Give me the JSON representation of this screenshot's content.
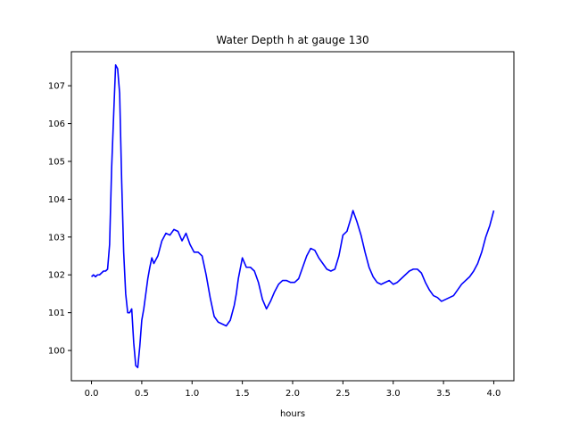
{
  "chart_data": {
    "type": "line",
    "title": "Water Depth h at gauge 130",
    "xlabel": "hours",
    "ylabel": "",
    "xlim": [
      -0.2,
      4.2
    ],
    "ylim": [
      99.2,
      107.9
    ],
    "xticks": [
      0.0,
      0.5,
      1.0,
      1.5,
      2.0,
      2.5,
      3.0,
      3.5,
      4.0
    ],
    "xtick_labels": [
      "0.0",
      "0.5",
      "1.0",
      "1.5",
      "2.0",
      "2.5",
      "3.0",
      "3.5",
      "4.0"
    ],
    "yticks": [
      100,
      101,
      102,
      103,
      104,
      105,
      106,
      107
    ],
    "ytick_labels": [
      "100",
      "101",
      "102",
      "103",
      "104",
      "105",
      "106",
      "107"
    ],
    "grid": false,
    "series": [
      {
        "color": "#0000ff",
        "x": [
          0.0,
          0.02,
          0.04,
          0.06,
          0.08,
          0.1,
          0.12,
          0.14,
          0.16,
          0.18,
          0.2,
          0.22,
          0.24,
          0.26,
          0.28,
          0.3,
          0.32,
          0.34,
          0.36,
          0.38,
          0.4,
          0.42,
          0.44,
          0.46,
          0.48,
          0.5,
          0.52,
          0.54,
          0.56,
          0.58,
          0.6,
          0.62,
          0.64,
          0.66,
          0.7,
          0.74,
          0.78,
          0.82,
          0.86,
          0.9,
          0.94,
          0.98,
          1.02,
          1.06,
          1.1,
          1.14,
          1.18,
          1.22,
          1.26,
          1.3,
          1.34,
          1.38,
          1.42,
          1.44,
          1.46,
          1.5,
          1.54,
          1.58,
          1.62,
          1.66,
          1.7,
          1.74,
          1.78,
          1.82,
          1.86,
          1.9,
          1.94,
          1.98,
          2.02,
          2.06,
          2.1,
          2.14,
          2.18,
          2.22,
          2.26,
          2.3,
          2.34,
          2.38,
          2.42,
          2.46,
          2.5,
          2.54,
          2.58,
          2.6,
          2.64,
          2.68,
          2.72,
          2.76,
          2.8,
          2.84,
          2.88,
          2.92,
          2.96,
          3.0,
          3.04,
          3.08,
          3.12,
          3.16,
          3.2,
          3.24,
          3.28,
          3.32,
          3.36,
          3.4,
          3.44,
          3.48,
          3.52,
          3.56,
          3.6,
          3.64,
          3.68,
          3.72,
          3.76,
          3.8,
          3.84,
          3.88,
          3.92,
          3.96,
          4.0
        ],
        "y": [
          101.95,
          102.0,
          101.95,
          102.0,
          102.0,
          102.05,
          102.1,
          102.1,
          102.15,
          102.8,
          104.8,
          106.2,
          107.55,
          107.45,
          106.8,
          104.5,
          102.6,
          101.5,
          101.0,
          101.0,
          101.1,
          100.2,
          99.6,
          99.55,
          100.1,
          100.8,
          101.1,
          101.5,
          101.9,
          102.2,
          102.45,
          102.3,
          102.4,
          102.5,
          102.9,
          103.1,
          103.05,
          103.2,
          103.15,
          102.9,
          103.1,
          102.8,
          102.6,
          102.6,
          102.5,
          102.0,
          101.4,
          100.9,
          100.75,
          100.7,
          100.65,
          100.8,
          101.2,
          101.5,
          101.9,
          102.45,
          102.2,
          102.2,
          102.1,
          101.8,
          101.35,
          101.1,
          101.3,
          101.55,
          101.75,
          101.85,
          101.85,
          101.8,
          101.8,
          101.9,
          102.2,
          102.5,
          102.7,
          102.65,
          102.45,
          102.3,
          102.15,
          102.1,
          102.15,
          102.5,
          103.05,
          103.15,
          103.5,
          103.7,
          103.4,
          103.05,
          102.6,
          102.2,
          101.95,
          101.8,
          101.75,
          101.8,
          101.85,
          101.75,
          101.8,
          101.9,
          102.0,
          102.1,
          102.15,
          102.15,
          102.05,
          101.8,
          101.6,
          101.45,
          101.4,
          101.3,
          101.35,
          101.4,
          101.45,
          101.6,
          101.75,
          101.85,
          101.95,
          102.1,
          102.3,
          102.6,
          103.0,
          103.3,
          103.7
        ]
      }
    ]
  }
}
